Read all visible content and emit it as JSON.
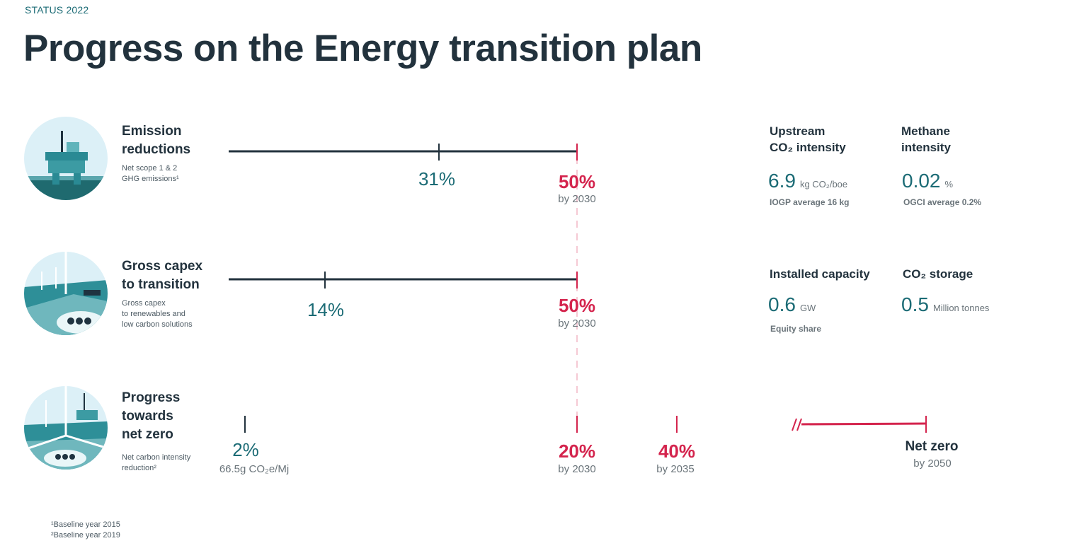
{
  "header": {
    "kicker": "STATUS 2022",
    "title": "Progress on the Energy transition plan"
  },
  "rows": [
    {
      "title_line1": "Emission",
      "title_line2": "reductions",
      "subtitle_line1": "Net scope 1 & 2",
      "subtitle_line2": "GHG emissions¹",
      "current": "31%",
      "current_fraction": 0.31,
      "target": "50%",
      "target_by": "by 2030"
    },
    {
      "title_line1": "Gross capex",
      "title_line2": "to transition",
      "subtitle_line1": "Gross capex",
      "subtitle_line2": "to renewables and",
      "subtitle_line3": "low carbon solutions",
      "current": "14%",
      "current_fraction": 0.14,
      "target": "50%",
      "target_by": "by 2030"
    },
    {
      "title_line1": "Progress",
      "title_line2": "towards",
      "title_line3": "net zero",
      "subtitle_line1": "Net carbon intensity",
      "subtitle_line2": "reduction²",
      "current": "2%",
      "current_note": "66.5g CO₂e/Mj",
      "target1": "20%",
      "target1_by": "by 2030",
      "target2": "40%",
      "target2_by": "by 2035",
      "final": "Net zero",
      "final_by": "by 2050"
    }
  ],
  "kpis": {
    "upstream": {
      "title_line1": "Upstream",
      "title_line2": "CO₂ intensity",
      "value": "6.9",
      "unit": "kg CO₂/boe",
      "note": "IOGP average 16 kg"
    },
    "methane": {
      "title_line1": "Methane",
      "title_line2": "intensity",
      "value": "0.02",
      "unit": "%",
      "note": "OGCI average 0.2%"
    },
    "capacity": {
      "title": "Installed capacity",
      "value": "0.6",
      "unit": "GW",
      "note": "Equity share"
    },
    "storage": {
      "title": "CO₂ storage",
      "value": "0.5",
      "unit": "Million tonnes"
    }
  },
  "footnotes": {
    "one": "¹Baseline year 2015",
    "two": "²Baseline year 2019"
  },
  "colors": {
    "dark": "#22323d",
    "teal": "#1b6b75",
    "red": "#d4244d",
    "light_sky": "#dcf0f7"
  }
}
